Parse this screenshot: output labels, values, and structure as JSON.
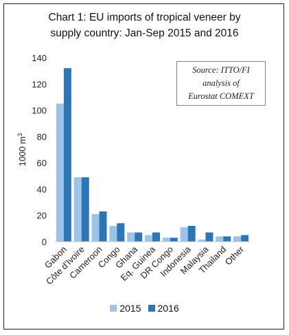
{
  "chart_data": {
    "type": "bar",
    "title_lines": [
      "Chart 1: EU imports of tropical  veneer by",
      "supply country: Jan-Sep 2015 and 2016"
    ],
    "ylabel": "1000 m",
    "ylabel_sup": "3",
    "ylim": [
      0,
      140
    ],
    "yticks": [
      0,
      20,
      40,
      60,
      80,
      100,
      120,
      140
    ],
    "categories": [
      "Gabon",
      "Côte d'Ivoire",
      "Cameroon",
      "Congo",
      "Ghana",
      "Eq. Guinea",
      "DR Congo",
      "Indonesia",
      "Malaysia",
      "Thailand",
      "Other"
    ],
    "series": [
      {
        "name": "2015",
        "color": "#9dc3e6",
        "values": [
          105,
          49,
          21,
          12,
          7,
          5,
          3,
          11,
          1.5,
          4,
          4
        ]
      },
      {
        "name": "2016",
        "color": "#2e75b6",
        "values": [
          132,
          49,
          23,
          14,
          7,
          7,
          3,
          12,
          7,
          4,
          5
        ]
      }
    ],
    "grid": false,
    "legend_position": "bottom",
    "annotation_lines": [
      "Source: ITTO/FI",
      "analysis of",
      "Eurostat COMEXT"
    ]
  }
}
